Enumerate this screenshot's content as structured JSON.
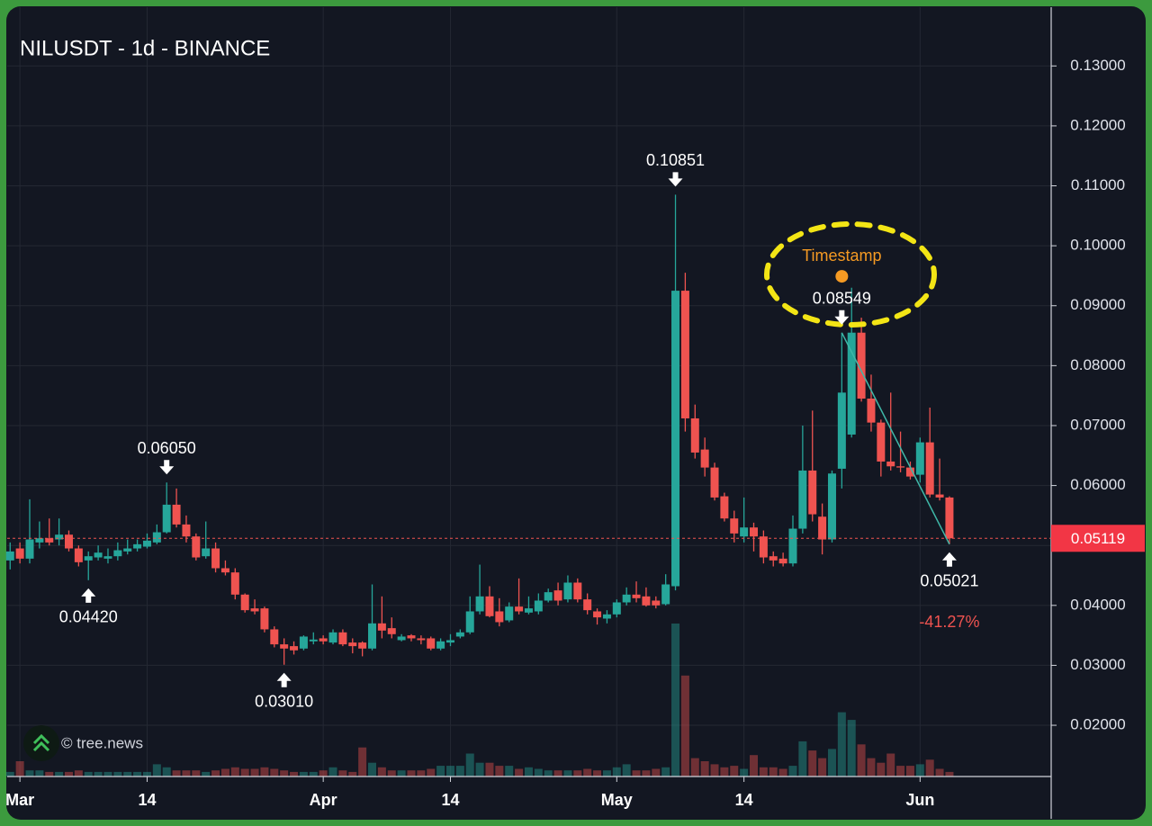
{
  "chart_data": {
    "type": "candlestick",
    "title": "NILUSDT - 1d - BINANCE",
    "up_color": "#26a69a",
    "down_color": "#ef5350",
    "grid": true,
    "x": [
      -1,
      0,
      1,
      2,
      3,
      4,
      5,
      6,
      7,
      8,
      9,
      10,
      11,
      12,
      13,
      14,
      15,
      16,
      17,
      18,
      19,
      20,
      21,
      22,
      23,
      24,
      25,
      26,
      27,
      28,
      29,
      30,
      31,
      32,
      33,
      34,
      35,
      36,
      37,
      38,
      39,
      40,
      41,
      42,
      43,
      44,
      45,
      46,
      47,
      48,
      49,
      50,
      51,
      52,
      53,
      54,
      55,
      56,
      57,
      58,
      59,
      60,
      61,
      62,
      63,
      64,
      65,
      66,
      67,
      68,
      69,
      70,
      71,
      72,
      73,
      74,
      75,
      76,
      77,
      78,
      79,
      80,
      81,
      82,
      83,
      84,
      85,
      86,
      87,
      88,
      89,
      90,
      91,
      92,
      93,
      94,
      95
    ],
    "open": [
      0.0475,
      0.0495,
      0.0478,
      0.0505,
      0.0512,
      0.051,
      0.0518,
      0.0495,
      0.0475,
      0.048,
      0.0478,
      0.0482,
      0.049,
      0.0495,
      0.0498,
      0.0505,
      0.0522,
      0.0568,
      0.0535,
      0.0515,
      0.0482,
      0.0495,
      0.0462,
      0.0455,
      0.0418,
      0.0395,
      0.0395,
      0.036,
      0.0335,
      0.0332,
      0.0328,
      0.034,
      0.0345,
      0.0338,
      0.0355,
      0.0338,
      0.0338,
      0.0328,
      0.037,
      0.0362,
      0.0342,
      0.035,
      0.0345,
      0.0345,
      0.0328,
      0.0338,
      0.0348,
      0.0355,
      0.039,
      0.0415,
      0.039,
      0.0375,
      0.0398,
      0.0388,
      0.039,
      0.0408,
      0.0425,
      0.041,
      0.0438,
      0.041,
      0.039,
      0.0378,
      0.0385,
      0.0405,
      0.0418,
      0.0415,
      0.0408,
      0.0402,
      0.0432,
      0.0925,
      0.0712,
      0.066,
      0.063,
      0.0582,
      0.0545,
      0.0515,
      0.053,
      0.0515,
      0.0482,
      0.0478,
      0.047,
      0.0528,
      0.0625,
      0.0548,
      0.051,
      0.0628,
      0.0685,
      0.0855,
      0.0745,
      0.0705,
      0.064,
      0.0632,
      0.063,
      0.0618,
      0.0672,
      0.0585,
      0.058
    ],
    "high": [
      0.0505,
      0.0505,
      0.0577,
      0.054,
      0.0545,
      0.0545,
      0.0525,
      0.05,
      0.049,
      0.05,
      0.0495,
      0.0505,
      0.051,
      0.051,
      0.052,
      0.0535,
      0.0605,
      0.0595,
      0.055,
      0.052,
      0.054,
      0.0505,
      0.0475,
      0.0462,
      0.042,
      0.041,
      0.0398,
      0.0365,
      0.0345,
      0.034,
      0.035,
      0.0355,
      0.035,
      0.036,
      0.036,
      0.0345,
      0.034,
      0.0435,
      0.0415,
      0.038,
      0.0352,
      0.0352,
      0.035,
      0.0348,
      0.0345,
      0.0352,
      0.036,
      0.0415,
      0.0468,
      0.0432,
      0.0412,
      0.0405,
      0.0445,
      0.0415,
      0.042,
      0.0428,
      0.0438,
      0.045,
      0.0445,
      0.042,
      0.0395,
      0.0392,
      0.041,
      0.043,
      0.044,
      0.043,
      0.0415,
      0.0452,
      0.10851,
      0.0955,
      0.0735,
      0.068,
      0.0638,
      0.0588,
      0.0558,
      0.058,
      0.0538,
      0.0525,
      0.049,
      0.0488,
      0.055,
      0.07,
      0.0725,
      0.057,
      0.0625,
      0.08549,
      0.093,
      0.088,
      0.0785,
      0.071,
      0.0755,
      0.069,
      0.064,
      0.068,
      0.073,
      0.0645,
      0.0582
    ],
    "low": [
      0.046,
      0.047,
      0.047,
      0.0495,
      0.05,
      0.05,
      0.049,
      0.0465,
      0.0442,
      0.0475,
      0.047,
      0.0475,
      0.0485,
      0.049,
      0.0495,
      0.0502,
      0.052,
      0.053,
      0.0505,
      0.0475,
      0.0478,
      0.0455,
      0.045,
      0.041,
      0.0388,
      0.0385,
      0.0355,
      0.033,
      0.0301,
      0.0318,
      0.0325,
      0.0335,
      0.0335,
      0.0335,
      0.0332,
      0.032,
      0.0315,
      0.0325,
      0.0345,
      0.0345,
      0.034,
      0.034,
      0.0335,
      0.0325,
      0.0325,
      0.0332,
      0.0345,
      0.0352,
      0.0385,
      0.038,
      0.0365,
      0.0372,
      0.0385,
      0.0385,
      0.0385,
      0.0405,
      0.04,
      0.0405,
      0.0405,
      0.0385,
      0.0368,
      0.037,
      0.038,
      0.04,
      0.0405,
      0.0398,
      0.0395,
      0.04,
      0.0425,
      0.069,
      0.0645,
      0.0615,
      0.0575,
      0.054,
      0.0505,
      0.0505,
      0.049,
      0.047,
      0.0465,
      0.0465,
      0.0465,
      0.052,
      0.054,
      0.0485,
      0.0505,
      0.0595,
      0.068,
      0.074,
      0.069,
      0.0615,
      0.0625,
      0.0622,
      0.061,
      0.0605,
      0.058,
      0.0575,
      0.05021
    ],
    "close": [
      0.049,
      0.0478,
      0.051,
      0.0512,
      0.0505,
      0.0518,
      0.0495,
      0.0472,
      0.0482,
      0.0488,
      0.0482,
      0.0492,
      0.0495,
      0.0502,
      0.0508,
      0.0522,
      0.0568,
      0.0535,
      0.0515,
      0.048,
      0.0495,
      0.0462,
      0.0455,
      0.0418,
      0.0392,
      0.039,
      0.036,
      0.0335,
      0.0328,
      0.0325,
      0.0348,
      0.0343,
      0.034,
      0.0355,
      0.0335,
      0.0332,
      0.0328,
      0.037,
      0.0358,
      0.0352,
      0.0348,
      0.0345,
      0.0342,
      0.0328,
      0.034,
      0.0342,
      0.0355,
      0.039,
      0.0415,
      0.0382,
      0.0372,
      0.0398,
      0.039,
      0.0395,
      0.0408,
      0.0422,
      0.0408,
      0.0438,
      0.041,
      0.0392,
      0.038,
      0.0385,
      0.0405,
      0.0418,
      0.0412,
      0.04,
      0.04,
      0.0435,
      0.0925,
      0.0712,
      0.0655,
      0.063,
      0.058,
      0.0545,
      0.052,
      0.053,
      0.0515,
      0.048,
      0.0475,
      0.047,
      0.0528,
      0.0625,
      0.0552,
      0.051,
      0.062,
      0.0755,
      0.0855,
      0.0745,
      0.0705,
      0.064,
      0.0632,
      0.063,
      0.0615,
      0.0672,
      0.0585,
      0.058,
      0.05119
    ],
    "volume": [
      3,
      10,
      4,
      4,
      3,
      3,
      3,
      4,
      3,
      3,
      3,
      3,
      3,
      3,
      3,
      8,
      6,
      4,
      4,
      4,
      3,
      4,
      5,
      6,
      5,
      5,
      6,
      5,
      4,
      3,
      3,
      3,
      4,
      6,
      4,
      3,
      19,
      9,
      6,
      4,
      4,
      4,
      4,
      5,
      7,
      7,
      7,
      15,
      9,
      9,
      7,
      7,
      5,
      6,
      5,
      4,
      4,
      4,
      4,
      5,
      4,
      4,
      6,
      8,
      4,
      4,
      5,
      6,
      100,
      66,
      12,
      10,
      8,
      6,
      7,
      5,
      14,
      6,
      6,
      5,
      7,
      23,
      17,
      12,
      18,
      42,
      37,
      21,
      12,
      9,
      15,
      7,
      7,
      8,
      11,
      5,
      3
    ],
    "xlim": [
      -1.3,
      105.4
    ],
    "xticks": [
      {
        "value": 0,
        "label": "Mar"
      },
      {
        "value": 13,
        "label": "14"
      },
      {
        "value": 31,
        "label": "Apr"
      },
      {
        "value": 44,
        "label": "14"
      },
      {
        "value": 61,
        "label": "May"
      },
      {
        "value": 74,
        "label": "14"
      },
      {
        "value": 92,
        "label": "Jun"
      }
    ],
    "ylim": [
      0.01145,
      0.1398
    ],
    "yticks": [
      {
        "value": 0.02,
        "label": "0.02000"
      },
      {
        "value": 0.03,
        "label": "0.03000"
      },
      {
        "value": 0.04,
        "label": "0.04000"
      },
      {
        "value": 0.05,
        "label": "0.05000"
      },
      {
        "value": 0.06,
        "label": "0.06000"
      },
      {
        "value": 0.07,
        "label": "0.07000"
      },
      {
        "value": 0.08,
        "label": "0.08000"
      },
      {
        "value": 0.09,
        "label": "0.09000"
      },
      {
        "value": 0.1,
        "label": "0.10000"
      },
      {
        "value": 0.11,
        "label": "0.11000"
      },
      {
        "value": 0.12,
        "label": "0.12000"
      },
      {
        "value": 0.13,
        "label": "0.13000"
      }
    ],
    "last_price": {
      "value": 0.05119,
      "label": "0.05119"
    },
    "annotations": [
      {
        "value": 0.10851,
        "label": "0.10851",
        "x": 67,
        "side": "above"
      },
      {
        "value": 0.0605,
        "label": "0.06050",
        "x": 15,
        "side": "above"
      },
      {
        "value": 0.08549,
        "label": "0.08549",
        "x": 84,
        "side": "above"
      },
      {
        "value": 0.0442,
        "label": "0.04420",
        "x": 7,
        "side": "below"
      },
      {
        "value": 0.0301,
        "label": "0.03010",
        "x": 27,
        "side": "below"
      },
      {
        "value": 0.05021,
        "label": "0.05021",
        "x": 95,
        "side": "below"
      }
    ],
    "change": {
      "value": -41.27,
      "label": "-41.27%"
    },
    "timestamp": {
      "label": "Timestamp",
      "x": 84,
      "y": 0.0949
    },
    "trend_line": {
      "x": [
        84,
        95
      ],
      "y": [
        0.08549,
        0.05021
      ]
    },
    "watermark": "© tree.news"
  }
}
